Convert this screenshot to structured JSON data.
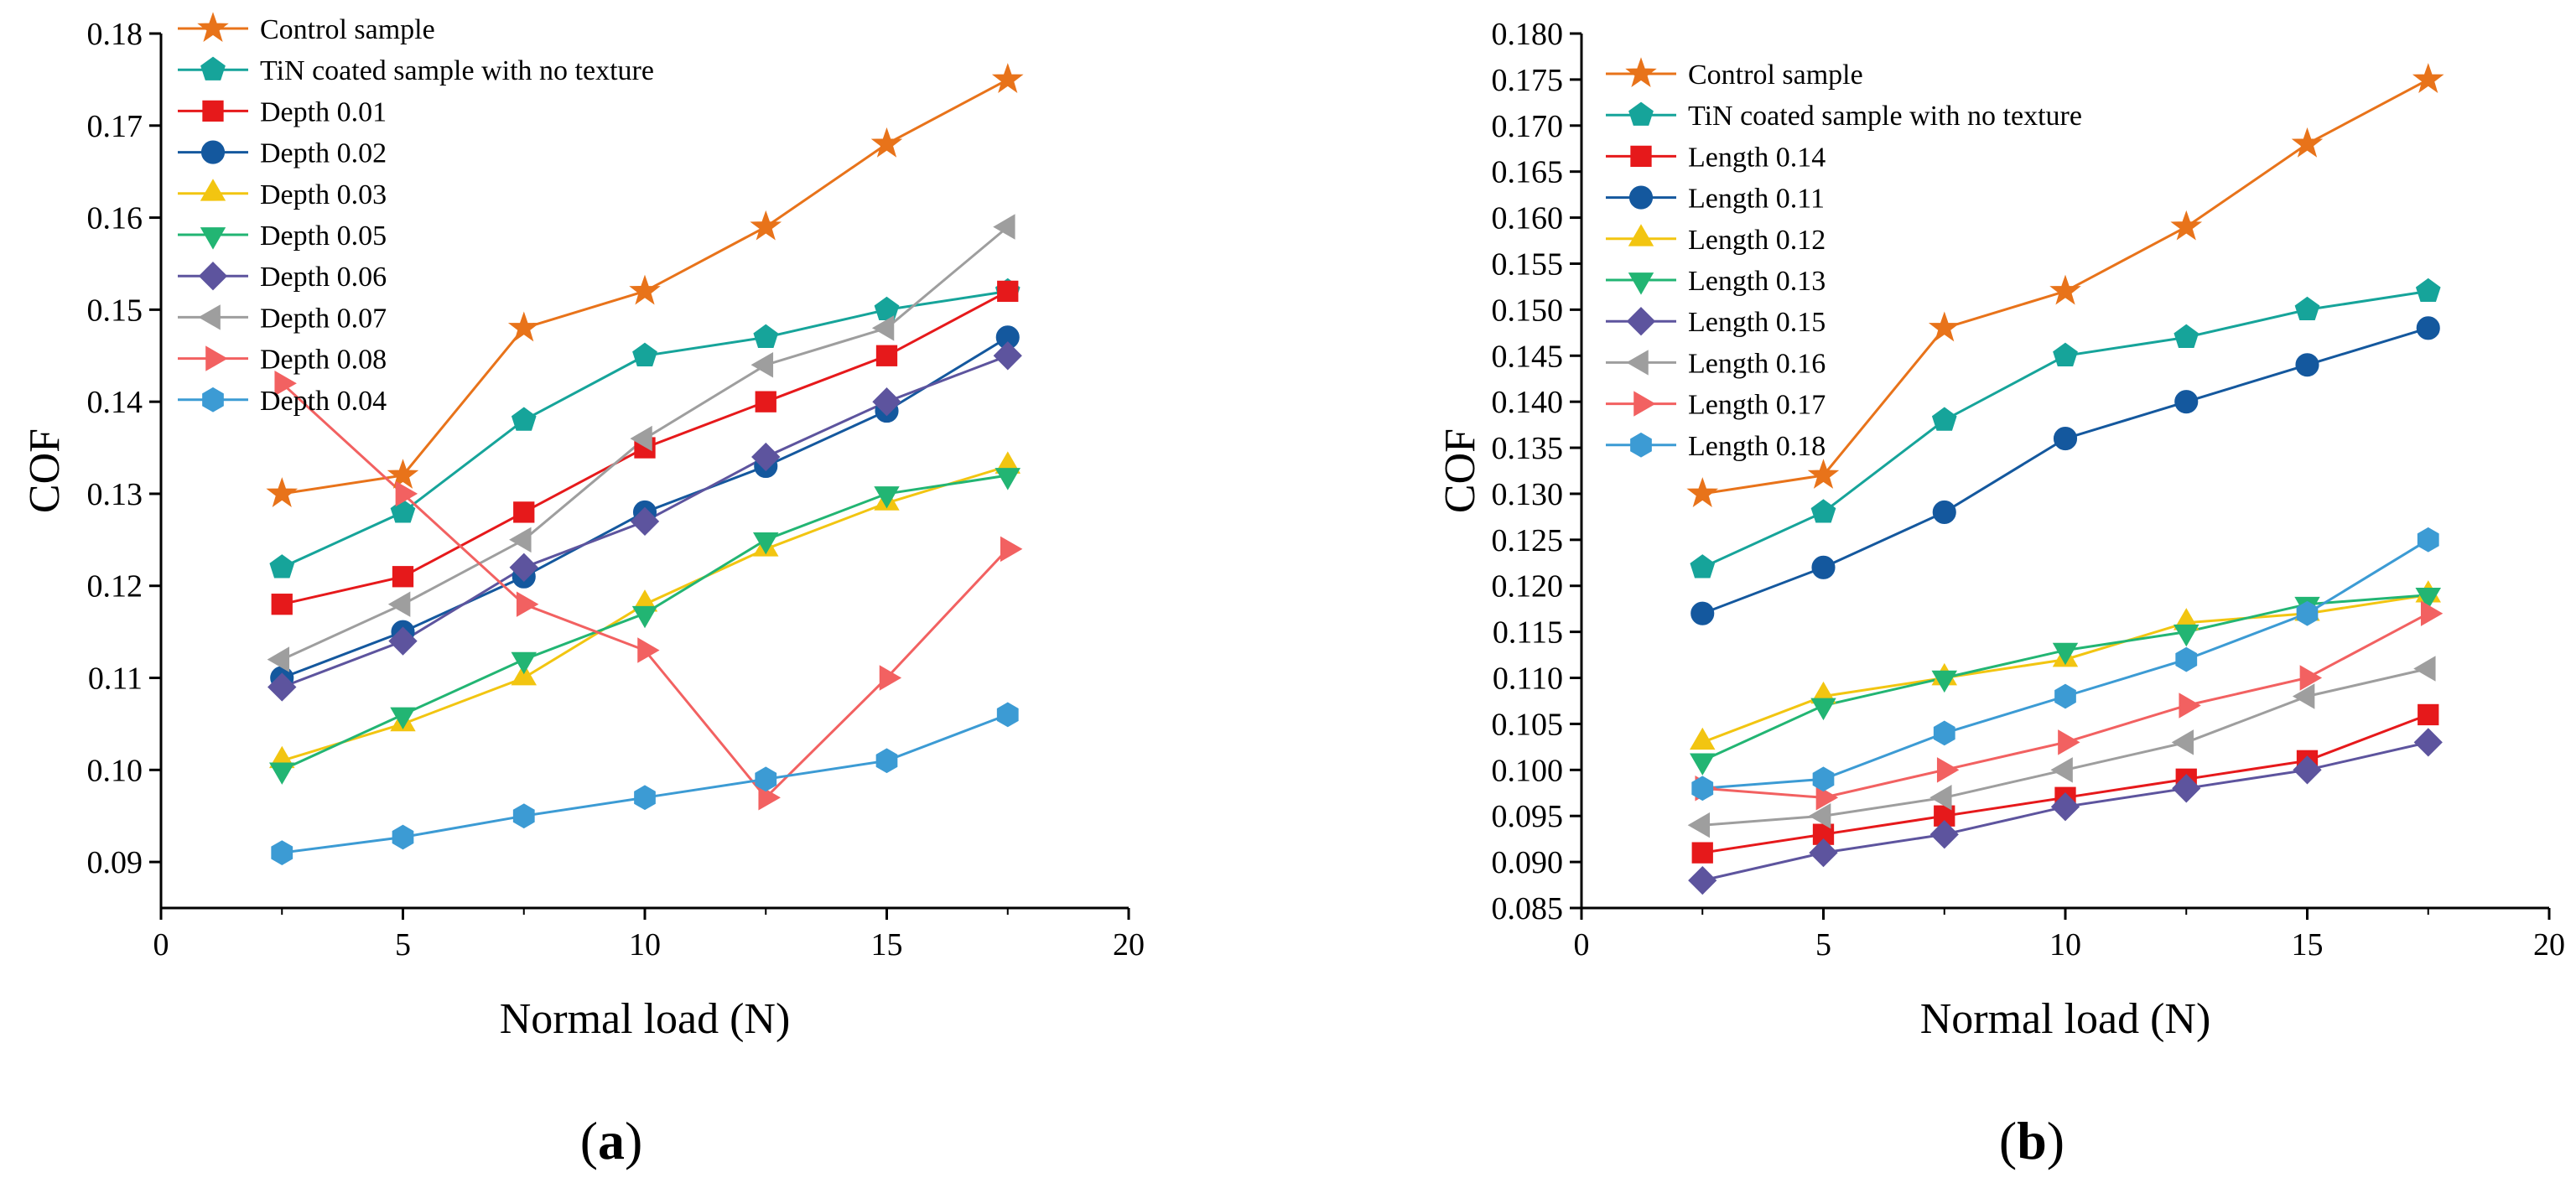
{
  "chart_data": [
    {
      "type": "line",
      "panel_label": "a",
      "xlabel": "Normal load (N)",
      "ylabel": "COF",
      "xlim": [
        0,
        20
      ],
      "ylim": [
        0.085,
        0.18
      ],
      "xticks": [
        "0",
        "5",
        "10",
        "15",
        "20"
      ],
      "yticks": [
        "0.09",
        "0.10",
        "0.11",
        "0.12",
        "0.13",
        "0.14",
        "0.15",
        "0.16",
        "0.17",
        "0.18"
      ],
      "x": [
        2.5,
        5,
        7.5,
        10,
        12.5,
        15,
        17.5
      ],
      "legend_position": "top-left",
      "series": [
        {
          "name": "Control sample",
          "marker": "star",
          "color": "#E8731A",
          "values": [
            0.13,
            0.132,
            0.148,
            0.152,
            0.159,
            0.168,
            0.175
          ]
        },
        {
          "name": "TiN coated sample with no texture",
          "marker": "pentagon",
          "color": "#16A49A",
          "values": [
            0.122,
            0.128,
            0.138,
            0.145,
            0.147,
            0.15,
            0.152
          ]
        },
        {
          "name": "Depth 0.01",
          "marker": "square",
          "color": "#E6191B",
          "values": [
            0.118,
            0.121,
            0.128,
            0.135,
            0.14,
            0.145,
            0.152
          ]
        },
        {
          "name": "Depth 0.02",
          "marker": "circle",
          "color": "#14589E",
          "values": [
            0.11,
            0.115,
            0.121,
            0.128,
            0.133,
            0.139,
            0.147
          ]
        },
        {
          "name": "Depth 0.03",
          "marker": "triangle-up",
          "color": "#F2C511",
          "values": [
            0.101,
            0.105,
            0.11,
            0.118,
            0.124,
            0.129,
            0.133
          ]
        },
        {
          "name": "Depth 0.05",
          "marker": "triangle-down",
          "color": "#22B573",
          "values": [
            0.1,
            0.106,
            0.112,
            0.117,
            0.125,
            0.13,
            0.132
          ]
        },
        {
          "name": "Depth 0.06",
          "marker": "diamond",
          "color": "#5D549E",
          "values": [
            0.109,
            0.114,
            0.122,
            0.127,
            0.134,
            0.14,
            0.145
          ]
        },
        {
          "name": "Depth 0.07",
          "marker": "triangle-left",
          "color": "#9E9E9E",
          "values": [
            0.112,
            0.118,
            0.125,
            0.136,
            0.144,
            0.148,
            0.159
          ]
        },
        {
          "name": "Depth 0.08",
          "marker": "triangle-right",
          "color": "#F26161",
          "values": [
            0.142,
            0.13,
            0.118,
            0.113,
            0.097,
            0.11,
            0.124
          ]
        },
        {
          "name": "Depth 0.04",
          "marker": "hexagon",
          "color": "#3C9BD4",
          "values": [
            0.091,
            0.0927,
            0.095,
            0.097,
            0.099,
            0.101,
            0.106
          ]
        }
      ]
    },
    {
      "type": "line",
      "panel_label": "b",
      "xlabel": "Normal load (N)",
      "ylabel": "COF",
      "xlim": [
        0,
        20
      ],
      "ylim": [
        0.085,
        0.18
      ],
      "xticks": [
        "0",
        "5",
        "10",
        "15",
        "20"
      ],
      "yticks": [
        "0.085",
        "0.090",
        "0.095",
        "0.100",
        "0.105",
        "0.110",
        "0.115",
        "0.120",
        "0.125",
        "0.130",
        "0.135",
        "0.140",
        "0.145",
        "0.150",
        "0.155",
        "0.160",
        "0.165",
        "0.170",
        "0.175",
        "0.180"
      ],
      "x": [
        2.5,
        5,
        7.5,
        10,
        12.5,
        15,
        17.5
      ],
      "legend_position": "top-left",
      "series": [
        {
          "name": "Control sample",
          "marker": "star",
          "color": "#E8731A",
          "values": [
            0.13,
            0.132,
            0.148,
            0.152,
            0.159,
            0.168,
            0.175
          ]
        },
        {
          "name": "TiN coated sample with no texture",
          "marker": "pentagon",
          "color": "#16A49A",
          "values": [
            0.122,
            0.128,
            0.138,
            0.145,
            0.147,
            0.15,
            0.152
          ]
        },
        {
          "name": "Length 0.14",
          "marker": "square",
          "color": "#E6191B",
          "values": [
            0.091,
            0.093,
            0.095,
            0.097,
            0.099,
            0.101,
            0.106
          ]
        },
        {
          "name": "Length 0.11",
          "marker": "circle",
          "color": "#14589E",
          "values": [
            0.117,
            0.122,
            0.128,
            0.136,
            0.14,
            0.144,
            0.148
          ]
        },
        {
          "name": "Length 0.12",
          "marker": "triangle-up",
          "color": "#F2C511",
          "values": [
            0.103,
            0.108,
            0.11,
            0.112,
            0.116,
            0.117,
            0.119
          ]
        },
        {
          "name": "Length 0.13",
          "marker": "triangle-down",
          "color": "#22B573",
          "values": [
            0.101,
            0.107,
            0.11,
            0.113,
            0.115,
            0.118,
            0.119
          ]
        },
        {
          "name": "Length 0.15",
          "marker": "diamond",
          "color": "#5D549E",
          "values": [
            0.088,
            0.091,
            0.093,
            0.096,
            0.098,
            0.1,
            0.103
          ]
        },
        {
          "name": "Length 0.16",
          "marker": "triangle-left",
          "color": "#9E9E9E",
          "values": [
            0.094,
            0.095,
            0.097,
            0.1,
            0.103,
            0.108,
            0.111
          ]
        },
        {
          "name": "Length 0.17",
          "marker": "triangle-right",
          "color": "#F26161",
          "values": [
            0.098,
            0.097,
            0.1,
            0.103,
            0.107,
            0.11,
            0.117
          ]
        },
        {
          "name": "Length 0.18",
          "marker": "hexagon",
          "color": "#3C9BD4",
          "values": [
            0.098,
            0.099,
            0.104,
            0.108,
            0.112,
            0.117,
            0.125
          ]
        }
      ]
    }
  ]
}
